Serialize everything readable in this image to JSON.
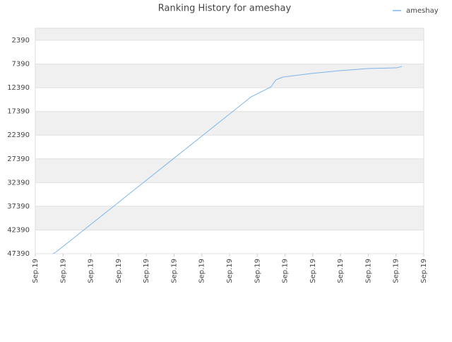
{
  "chart_data": {
    "type": "line",
    "title": "Ranking History for ameshay",
    "x": [
      0.64,
      0.77,
      7.78,
      8.49,
      8.67,
      8.93,
      9.95,
      10.97,
      11.99,
      13.01,
      13.21
    ],
    "series": [
      {
        "name": "ameshay",
        "color": "#7cb5ec",
        "values": [
          47390,
          46943,
          14312,
          12226,
          10736,
          10140,
          9395,
          8799,
          8352,
          8203,
          7905
        ]
      }
    ],
    "xlim": [
      0,
      14
    ],
    "xticks": [
      {
        "value": 0,
        "label": "Sep.19"
      },
      {
        "value": 1,
        "label": "Sep.19"
      },
      {
        "value": 2,
        "label": "Sep.19"
      },
      {
        "value": 3,
        "label": "Sep.19"
      },
      {
        "value": 4,
        "label": "Sep.19"
      },
      {
        "value": 5,
        "label": "Sep.19"
      },
      {
        "value": 6,
        "label": "Sep.19"
      },
      {
        "value": 7,
        "label": "Sep.19"
      },
      {
        "value": 8,
        "label": "Sep.19"
      },
      {
        "value": 9,
        "label": "Sep.19"
      },
      {
        "value": 10,
        "label": "Sep.19"
      },
      {
        "value": 11,
        "label": "Sep.19"
      },
      {
        "value": 12,
        "label": "Sep.19"
      },
      {
        "value": 13,
        "label": "Sep.19"
      },
      {
        "value": 14,
        "label": "Sep.19"
      }
    ],
    "ylim": [
      47390,
      -150
    ],
    "yticks": [
      2390,
      7390,
      12390,
      17390,
      22390,
      27390,
      32390,
      37390,
      42390,
      47390
    ],
    "grid": true,
    "legend": "top-right"
  }
}
